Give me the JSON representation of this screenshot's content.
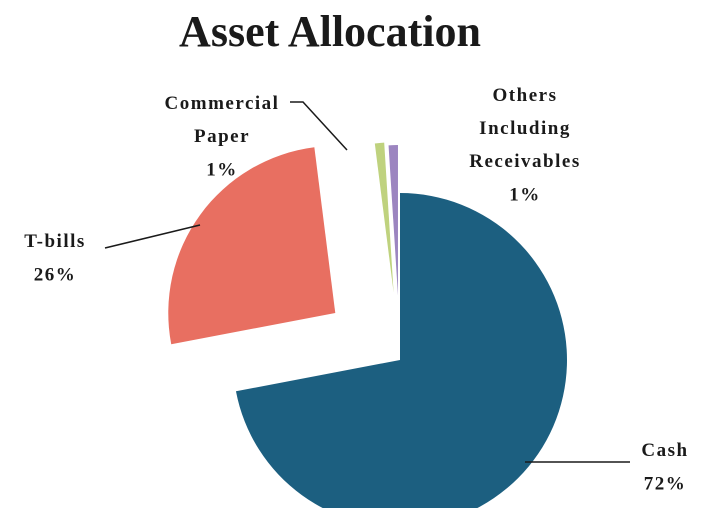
{
  "chart_data": {
    "type": "pie",
    "title": "Asset Allocation",
    "categories": [
      "Cash",
      "T-bills",
      "Commercial Paper",
      "Others Including Receivables"
    ],
    "values": [
      72,
      26,
      1,
      1
    ],
    "value_labels": [
      "72%",
      "26%",
      "1%",
      "1%"
    ],
    "colors": [
      "#1c5f80",
      "#e86f61",
      "#bfd27e",
      "#9c85c0"
    ]
  }
}
